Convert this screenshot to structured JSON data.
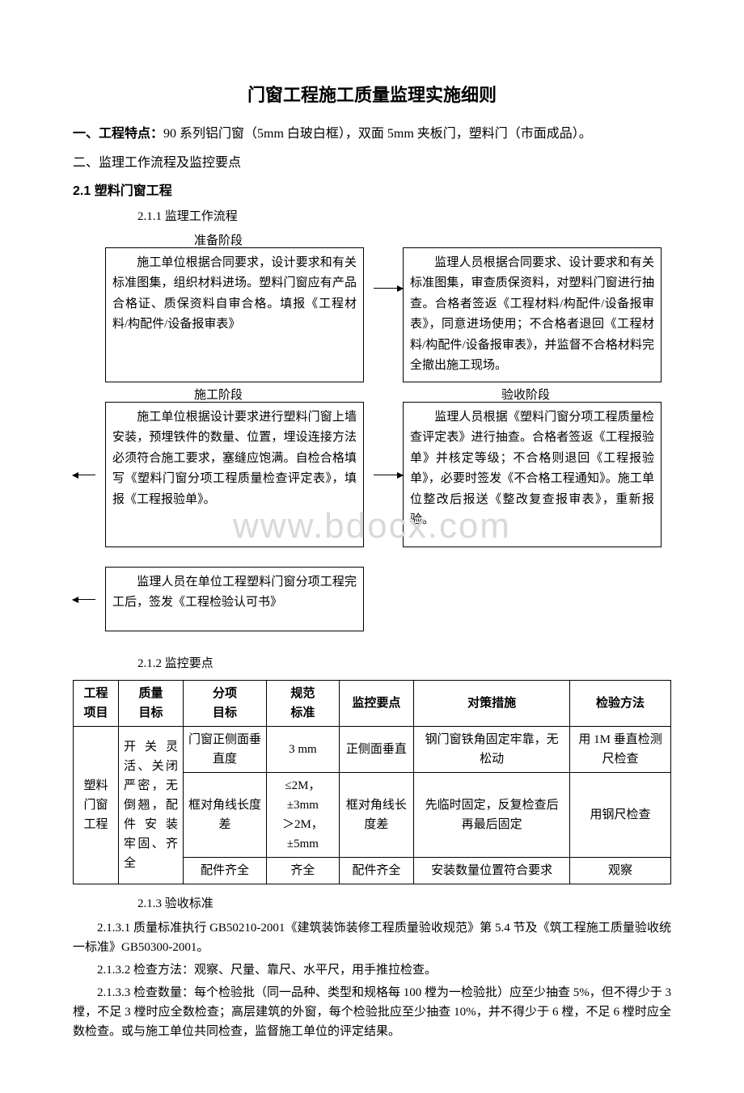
{
  "title": "门窗工程施工质量监理实施细则",
  "section1": {
    "label": "一、工程特点：",
    "text": "90 系列铝门窗（5mm 白玻白框），双面 5mm 夹板门，塑料门（市面成品）。"
  },
  "section2_heading": "二、监理工作流程及监控要点",
  "section21": "2.1 塑料门窗工程",
  "section211": "2.1.1 监理工作流程",
  "phases": {
    "prep": "准备阶段",
    "cons": "施工阶段",
    "accept": "验收阶段"
  },
  "flow": {
    "box1": "　　施工单位根据合同要求，设计要求和有关标准图集，组织材料进场。塑料门窗应有产品合格证、质保资料自审合格。填报《工程材料/构配件/设备报审表》",
    "box2": "　　监理人员根据合同要求、设计要求和有关标准图集，审查质保资料，对塑料门窗进行抽查。合格者签返《工程材料/构配件/设备报审表》，同意进场使用；不合格者退回《工程材料/构配件/设备报审表》，并监督不合格材料完全撤出施工现场。",
    "box3": "　　施工单位根据设计要求进行塑料门窗上墙安装，预埋铁件的数量、位置，埋设连接方法必须符合施工要求，塞缝应饱满。自检合格填写《塑料门窗分项工程质量检查评定表》，填报《工程报验单》。",
    "box4": "　　监理人员根据《塑料门窗分项工程质量检查评定表》进行抽查。合格者签返《工程报验单》并核定等级；不合格则退回《工程报验单》，必要时签发《不合格工程通知》。施工单位整改后报送《整改复查报审表》，重新报验。",
    "box5": "　　监理人员在单位工程塑料门窗分项工程完工后，签发《工程检验认可书》"
  },
  "watermark": "www.bdocx.com",
  "section212": "2.1.2 监控要点",
  "table": {
    "columns": [
      "工程\n项目",
      "质量\n目标",
      "分项\n目标",
      "规范\n标准",
      "监控要点",
      "对策措施",
      "检验方法"
    ],
    "proj": "塑料\n门窗\n工程",
    "goal": "开 关 灵活、关闭严密，无倒翘，配件 安 装牢固、齐全",
    "rows": [
      [
        "门窗正侧面垂直度",
        "3 mm",
        "正侧面垂直",
        "钢门窗铁角固定牢靠，无松动",
        "用 1M 垂直检测尺检查"
      ],
      [
        "框对角线长度差",
        "≤2M，±3mm\n＞2M，±5mm",
        "框对角线长度差",
        "先临时固定，反复检查后再最后固定",
        "用钢尺检查"
      ],
      [
        "配件齐全",
        "齐全",
        "配件齐全",
        "安装数量位置符合要求",
        "观察"
      ]
    ]
  },
  "section213": "2.1.3 验收标准",
  "p2131": "2.1.3.1 质量标准执行 GB50210-2001《建筑装饰装修工程质量验收规范》第 5.4 节及《筑工程施工质量验收统一标准》GB50300-2001。",
  "p2132": "2.1.3.2 检查方法：观察、尺量、靠尺、水平尺，用手推拉检查。",
  "p2133": "2.1.3.3 检查数量：每个检验批（同一品种、类型和规格每 100 樘为一检验批）应至少抽查 5%，但不得少于 3 樘，不足 3 樘时应全数检查；高层建筑的外窗，每个检验批应至少抽查 10%，并不得少于 6 樘，不足 6 樘时应全数检查。或与施工单位共同检查，监督施工单位的评定结果。"
}
